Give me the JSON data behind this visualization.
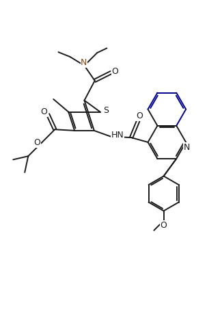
{
  "bg_color": "#ffffff",
  "line_color": "#1a1a1a",
  "dark_blue": "#00008B",
  "lw": 1.4,
  "xlim": [
    0,
    9.5
  ],
  "ylim": [
    0,
    13.5
  ]
}
